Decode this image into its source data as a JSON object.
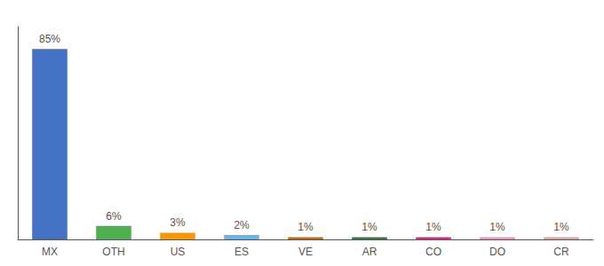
{
  "chart_data": {
    "type": "bar",
    "categories": [
      "MX",
      "OTH",
      "US",
      "ES",
      "VE",
      "AR",
      "CO",
      "DO",
      "CR"
    ],
    "values": [
      85,
      6,
      3,
      2,
      1,
      1,
      1,
      1,
      1
    ],
    "value_labels": [
      "85%",
      "6%",
      "3%",
      "2%",
      "1%",
      "1%",
      "1%",
      "1%",
      "1%"
    ],
    "colors": [
      "#4472c4",
      "#4caf50",
      "#ff9800",
      "#64b5f6",
      "#cc6600",
      "#2e7d32",
      "#e91e8c",
      "#f48fb1",
      "#e8a090"
    ],
    "ylim": [
      0,
      95
    ],
    "data_labels": true,
    "tick_labels": "x",
    "grid": false
  }
}
